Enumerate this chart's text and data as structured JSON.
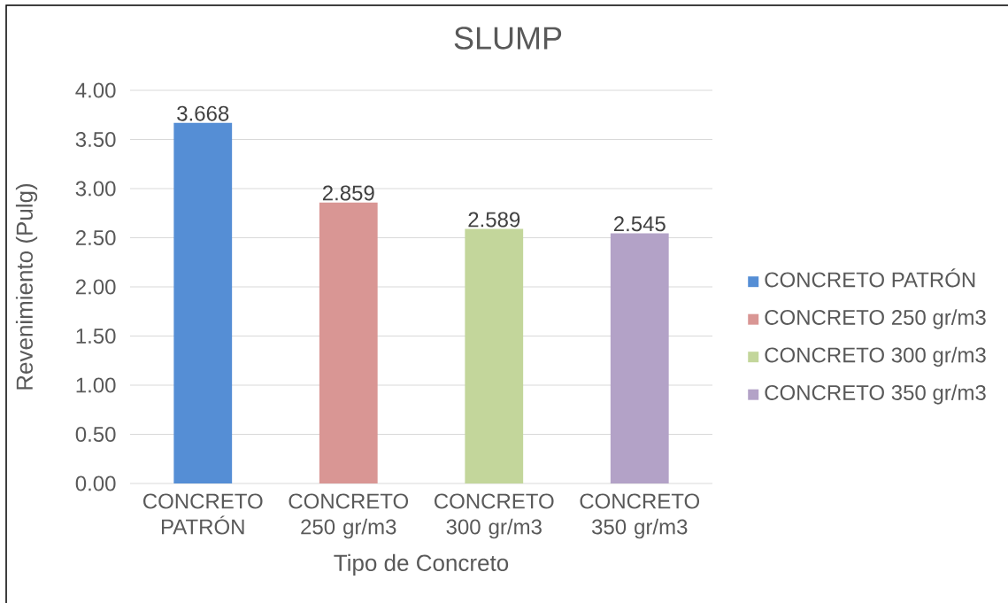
{
  "chart_data": {
    "type": "bar",
    "title": "SLUMP",
    "xlabel": "Tipo de Concreto",
    "ylabel": "Revenimiento (Pulg)",
    "categories": [
      "CONCRETO PATRÓN",
      "CONCRETO 250 gr/m3",
      "CONCRETO 300 gr/m3",
      "CONCRETO 350 gr/m3"
    ],
    "series": [
      {
        "name": "CONCRETO PATRÓN",
        "color": "#558ed5",
        "values": [
          3.668,
          null,
          null,
          null
        ]
      },
      {
        "name": "CONCRETO 250 gr/m3",
        "color": "#d99694",
        "values": [
          null,
          2.859,
          null,
          null
        ]
      },
      {
        "name": "CONCRETO 300 gr/m3",
        "color": "#c3d69b",
        "values": [
          null,
          null,
          2.589,
          null
        ]
      },
      {
        "name": "CONCRETO 350 gr/m3",
        "color": "#b3a2c7",
        "values": [
          null,
          null,
          null,
          2.545
        ]
      }
    ],
    "ylim": [
      0,
      4
    ],
    "yticks": [
      {
        "value": 0,
        "label": "0.00"
      },
      {
        "value": 0.5,
        "label": "0.50"
      },
      {
        "value": 1,
        "label": "1.00"
      },
      {
        "value": 1.5,
        "label": "1.50"
      },
      {
        "value": 2,
        "label": "2.00"
      },
      {
        "value": 2.5,
        "label": "2.50"
      },
      {
        "value": 3,
        "label": "3.00"
      },
      {
        "value": 3.5,
        "label": "3.50"
      },
      {
        "value": 4,
        "label": "4.00"
      }
    ],
    "grid": "y",
    "legend": "right",
    "data_labels": true
  }
}
